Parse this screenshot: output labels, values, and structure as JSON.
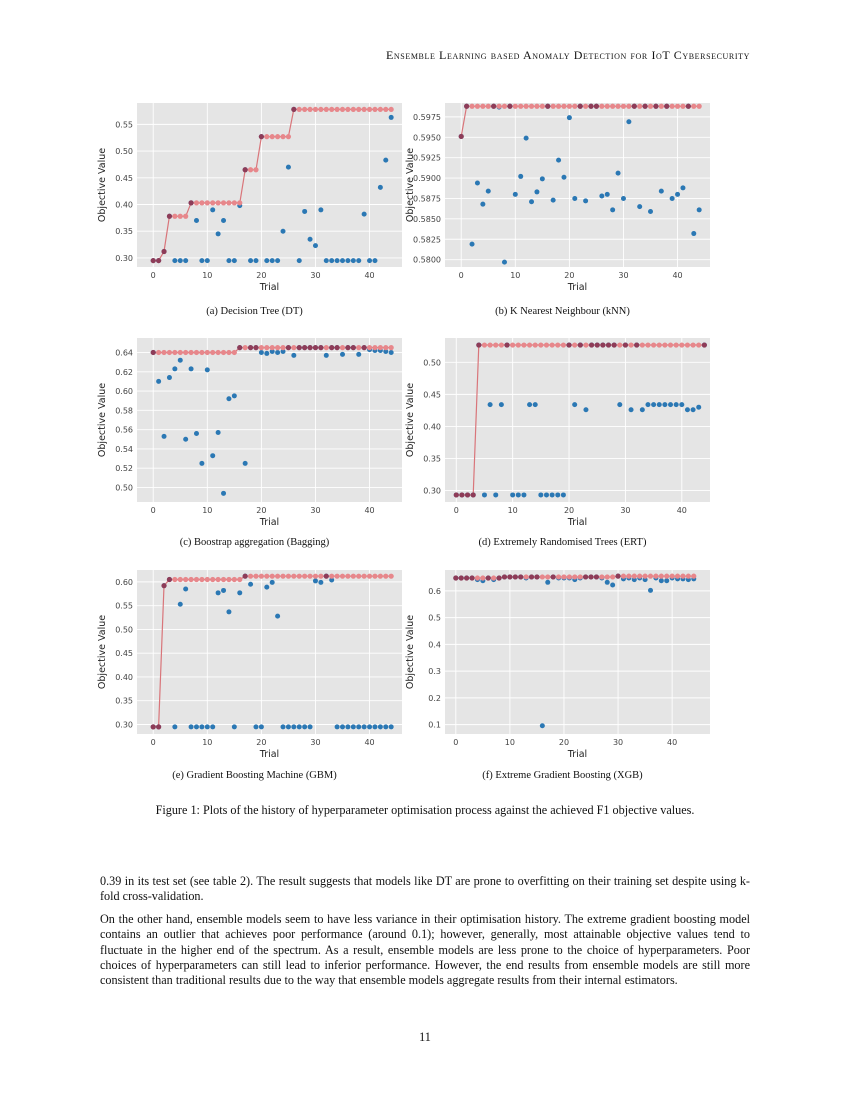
{
  "header": {
    "running_title": "Ensemble Learning based Anomaly Detection for IoT Cybersecurity"
  },
  "figure": {
    "caption": "Figure 1: Plots of the history of hyperparameter optimisation process against the achieved F1 objective values.",
    "colors": {
      "plot_bg": "#e5e5e5",
      "grid": "#ffffff",
      "trial_points": "#2b78b4",
      "best_line": "#d9757a",
      "best_points": "#e7878b",
      "overlap_points": "#8e3c58"
    }
  },
  "chart_data": [
    {
      "id": "dt",
      "type": "scatter",
      "caption": "(a) Decision Tree (DT)",
      "xlabel": "Trial",
      "ylabel": "Objective Value",
      "xlim": [
        -3,
        46
      ],
      "ylim": [
        0.283,
        0.59
      ],
      "xticks": [
        0,
        10,
        20,
        30,
        40
      ],
      "yticks": [
        0.3,
        0.35,
        0.4,
        0.45,
        0.5,
        0.55
      ],
      "ytick_labels": [
        "0.30",
        "0.35",
        "0.40",
        "0.45",
        "0.50",
        "0.55"
      ],
      "trials": [
        0.295,
        0.295,
        0.312,
        0.378,
        0.295,
        0.295,
        0.295,
        0.403,
        0.37,
        0.295,
        0.295,
        0.39,
        0.345,
        0.37,
        0.295,
        0.295,
        0.398,
        0.465,
        0.295,
        0.295,
        0.527,
        0.295,
        0.295,
        0.295,
        0.35,
        0.47,
        0.578,
        0.295,
        0.387,
        0.335,
        0.323,
        0.39,
        0.295,
        0.295,
        0.295,
        0.295,
        0.295,
        0.295,
        0.295,
        0.382,
        0.295,
        0.295,
        0.432,
        0.483,
        0.563
      ],
      "best": [
        0.295,
        0.295,
        0.312,
        0.378,
        0.378,
        0.378,
        0.378,
        0.403,
        0.403,
        0.403,
        0.403,
        0.403,
        0.403,
        0.403,
        0.403,
        0.403,
        0.403,
        0.465,
        0.465,
        0.465,
        0.527,
        0.527,
        0.527,
        0.527,
        0.527,
        0.527,
        0.578,
        0.578,
        0.578,
        0.578,
        0.578,
        0.578,
        0.578,
        0.578,
        0.578,
        0.578,
        0.578,
        0.578,
        0.578,
        0.578,
        0.578,
        0.578,
        0.578,
        0.578,
        0.578
      ]
    },
    {
      "id": "knn",
      "type": "scatter",
      "caption": "(b) K Nearest Neighbour (kNN)",
      "xlabel": "Trial",
      "ylabel": "Objective Value",
      "xlim": [
        -3,
        46
      ],
      "ylim": [
        0.5791,
        0.5992
      ],
      "xticks": [
        0,
        10,
        20,
        30,
        40
      ],
      "yticks": [
        0.58,
        0.5825,
        0.585,
        0.5875,
        0.59,
        0.5925,
        0.595,
        0.5975
      ],
      "ytick_labels": [
        "0.5800",
        "0.5825",
        "0.5850",
        "0.5875",
        "0.5900",
        "0.5925",
        "0.5950",
        "0.5975"
      ],
      "trials": [
        0.5951,
        0.5988,
        0.5819,
        0.5894,
        0.5868,
        0.5884,
        0.5988,
        0.5987,
        0.5797,
        0.5988,
        0.588,
        0.5902,
        0.5949,
        0.5871,
        0.5883,
        0.5899,
        0.5988,
        0.5873,
        0.5922,
        0.5901,
        0.5974,
        0.5875,
        0.5988,
        0.5872,
        0.5988,
        0.5988,
        0.5878,
        0.588,
        0.5861,
        0.5906,
        0.5875,
        0.5969,
        0.5988,
        0.5865,
        0.5988,
        0.5859,
        0.5988,
        0.5884,
        0.5988,
        0.5875,
        0.588,
        0.5888,
        0.5988,
        0.5832,
        0.5861
      ],
      "best": [
        0.5951,
        0.5988,
        0.5988,
        0.5988,
        0.5988,
        0.5988,
        0.5988,
        0.5988,
        0.5988,
        0.5988,
        0.5988,
        0.5988,
        0.5988,
        0.5988,
        0.5988,
        0.5988,
        0.5988,
        0.5988,
        0.5988,
        0.5988,
        0.5988,
        0.5988,
        0.5988,
        0.5988,
        0.5988,
        0.5988,
        0.5988,
        0.5988,
        0.5988,
        0.5988,
        0.5988,
        0.5988,
        0.5988,
        0.5988,
        0.5988,
        0.5988,
        0.5988,
        0.5988,
        0.5988,
        0.5988,
        0.5988,
        0.5988,
        0.5988,
        0.5988,
        0.5988
      ]
    },
    {
      "id": "bagging",
      "type": "scatter",
      "caption": "(c) Boostrap aggregation (Bagging)",
      "xlabel": "Trial",
      "ylabel": "Objective Value",
      "xlim": [
        -3,
        46
      ],
      "ylim": [
        0.485,
        0.655
      ],
      "xticks": [
        0,
        10,
        20,
        30,
        40
      ],
      "yticks": [
        0.5,
        0.52,
        0.54,
        0.56,
        0.58,
        0.6,
        0.62,
        0.64
      ],
      "ytick_labels": [
        "0.50",
        "0.52",
        "0.54",
        "0.56",
        "0.58",
        "0.60",
        "0.62",
        "0.64"
      ],
      "trials": [
        0.64,
        0.61,
        0.553,
        0.614,
        0.623,
        0.632,
        0.55,
        0.623,
        0.556,
        0.525,
        0.622,
        0.533,
        0.557,
        0.494,
        0.592,
        0.595,
        0.645,
        0.525,
        0.645,
        0.645,
        0.64,
        0.639,
        0.641,
        0.64,
        0.641,
        0.645,
        0.637,
        0.645,
        0.645,
        0.645,
        0.645,
        0.645,
        0.637,
        0.645,
        0.645,
        0.638,
        0.645,
        0.645,
        0.638,
        0.645,
        0.643,
        0.642,
        0.642,
        0.641,
        0.64
      ],
      "best": [
        0.64,
        0.64,
        0.64,
        0.64,
        0.64,
        0.64,
        0.64,
        0.64,
        0.64,
        0.64,
        0.64,
        0.64,
        0.64,
        0.64,
        0.64,
        0.64,
        0.645,
        0.645,
        0.645,
        0.645,
        0.645,
        0.645,
        0.645,
        0.645,
        0.645,
        0.645,
        0.645,
        0.645,
        0.645,
        0.645,
        0.645,
        0.645,
        0.645,
        0.645,
        0.645,
        0.645,
        0.645,
        0.645,
        0.645,
        0.645,
        0.645,
        0.645,
        0.645,
        0.645,
        0.645
      ]
    },
    {
      "id": "ert",
      "type": "scatter",
      "caption": "(d) Extremely Randomised Trees (ERT)",
      "xlabel": "Trial",
      "ylabel": "Objective Value",
      "xlim": [
        -2,
        45
      ],
      "ylim": [
        0.282,
        0.538
      ],
      "xticks": [
        0,
        10,
        20,
        30,
        40
      ],
      "yticks": [
        0.3,
        0.35,
        0.4,
        0.45,
        0.5
      ],
      "ytick_labels": [
        "0.30",
        "0.35",
        "0.40",
        "0.45",
        "0.50"
      ],
      "trials": [
        0.293,
        0.293,
        0.293,
        0.293,
        0.527,
        0.293,
        0.434,
        0.293,
        0.434,
        0.527,
        0.293,
        0.293,
        0.293,
        0.434,
        0.434,
        0.293,
        0.293,
        0.293,
        0.293,
        0.293,
        0.527,
        0.434,
        0.527,
        0.426,
        0.527,
        0.527,
        0.527,
        0.527,
        0.527,
        0.434,
        0.527,
        0.426,
        0.527,
        0.426,
        0.434,
        0.434,
        0.434,
        0.434,
        0.434,
        0.434,
        0.434,
        0.426,
        0.426,
        0.43,
        0.527
      ],
      "best": [
        0.293,
        0.293,
        0.293,
        0.293,
        0.527,
        0.527,
        0.527,
        0.527,
        0.527,
        0.527,
        0.527,
        0.527,
        0.527,
        0.527,
        0.527,
        0.527,
        0.527,
        0.527,
        0.527,
        0.527,
        0.527,
        0.527,
        0.527,
        0.527,
        0.527,
        0.527,
        0.527,
        0.527,
        0.527,
        0.527,
        0.527,
        0.527,
        0.527,
        0.527,
        0.527,
        0.527,
        0.527,
        0.527,
        0.527,
        0.527,
        0.527,
        0.527,
        0.527,
        0.527,
        0.527
      ]
    },
    {
      "id": "gbm",
      "type": "scatter",
      "caption": "(e) Gradient Boosting Machine (GBM)",
      "xlabel": "Trial",
      "ylabel": "Objective Value",
      "xlim": [
        -3,
        46
      ],
      "ylim": [
        0.28,
        0.625
      ],
      "xticks": [
        0,
        10,
        20,
        30,
        40
      ],
      "yticks": [
        0.3,
        0.35,
        0.4,
        0.45,
        0.5,
        0.55,
        0.6
      ],
      "ytick_labels": [
        "0.30",
        "0.35",
        "0.40",
        "0.45",
        "0.50",
        "0.55",
        "0.60"
      ],
      "trials": [
        0.295,
        0.295,
        0.592,
        0.605,
        0.295,
        0.553,
        0.585,
        0.295,
        0.295,
        0.295,
        0.295,
        0.295,
        0.577,
        0.582,
        0.537,
        0.295,
        0.577,
        0.612,
        0.595,
        0.295,
        0.295,
        0.589,
        0.599,
        0.528,
        0.295,
        0.295,
        0.295,
        0.295,
        0.295,
        0.295,
        0.602,
        0.599,
        0.612,
        0.604,
        0.295,
        0.295,
        0.295,
        0.295,
        0.295,
        0.295,
        0.295,
        0.295,
        0.295,
        0.295,
        0.295
      ],
      "best": [
        0.295,
        0.295,
        0.592,
        0.605,
        0.605,
        0.605,
        0.605,
        0.605,
        0.605,
        0.605,
        0.605,
        0.605,
        0.605,
        0.605,
        0.605,
        0.605,
        0.605,
        0.612,
        0.612,
        0.612,
        0.612,
        0.612,
        0.612,
        0.612,
        0.612,
        0.612,
        0.612,
        0.612,
        0.612,
        0.612,
        0.612,
        0.612,
        0.612,
        0.612,
        0.612,
        0.612,
        0.612,
        0.612,
        0.612,
        0.612,
        0.612,
        0.612,
        0.612,
        0.612,
        0.612
      ]
    },
    {
      "id": "xgb",
      "type": "scatter",
      "caption": "(f) Extreme Gradient Boosting (XGB)",
      "xlabel": "Trial",
      "ylabel": "Objective Value",
      "xlim": [
        -2,
        47
      ],
      "ylim": [
        0.065,
        0.678
      ],
      "xticks": [
        0,
        10,
        20,
        30,
        40
      ],
      "yticks": [
        0.1,
        0.2,
        0.3,
        0.4,
        0.5,
        0.6
      ],
      "ytick_labels": [
        "0.1",
        "0.2",
        "0.3",
        "0.4",
        "0.5",
        "0.6"
      ],
      "trials": [
        0.648,
        0.648,
        0.648,
        0.648,
        0.642,
        0.638,
        0.648,
        0.642,
        0.648,
        0.652,
        0.652,
        0.652,
        0.652,
        0.648,
        0.652,
        0.652,
        0.096,
        0.632,
        0.652,
        0.648,
        0.648,
        0.648,
        0.642,
        0.648,
        0.652,
        0.652,
        0.652,
        0.648,
        0.632,
        0.622,
        0.655,
        0.645,
        0.648,
        0.642,
        0.648,
        0.642,
        0.602,
        0.648,
        0.638,
        0.638,
        0.648,
        0.645,
        0.645,
        0.642,
        0.645
      ],
      "best": [
        0.648,
        0.648,
        0.648,
        0.648,
        0.648,
        0.648,
        0.648,
        0.648,
        0.648,
        0.652,
        0.652,
        0.652,
        0.652,
        0.652,
        0.652,
        0.652,
        0.652,
        0.652,
        0.652,
        0.652,
        0.652,
        0.652,
        0.652,
        0.652,
        0.652,
        0.652,
        0.652,
        0.652,
        0.652,
        0.652,
        0.655,
        0.655,
        0.655,
        0.655,
        0.655,
        0.655,
        0.655,
        0.655,
        0.655,
        0.655,
        0.655,
        0.655,
        0.655,
        0.655,
        0.655
      ]
    }
  ],
  "body": {
    "paragraph_1": "0.39 in its test set (see table 2). The result suggests that models like DT are prone to overfitting on their training set despite using k-fold cross-validation.",
    "paragraph_2": "On the other hand, ensemble models seem to have less variance in their optimisation history. The extreme gradient boosting model contains an outlier that achieves poor performance (around 0.1); however, generally, most attainable objective values tend to fluctuate in the higher end of the spectrum. As a result, ensemble models are less prone to the choice of hyperparameters. Poor choices of hyperparameters can still lead to inferior performance. However, the end results from ensemble models are still more consistent than traditional results due to the way that ensemble models aggregate results from their internal estimators."
  },
  "page_number": "11"
}
